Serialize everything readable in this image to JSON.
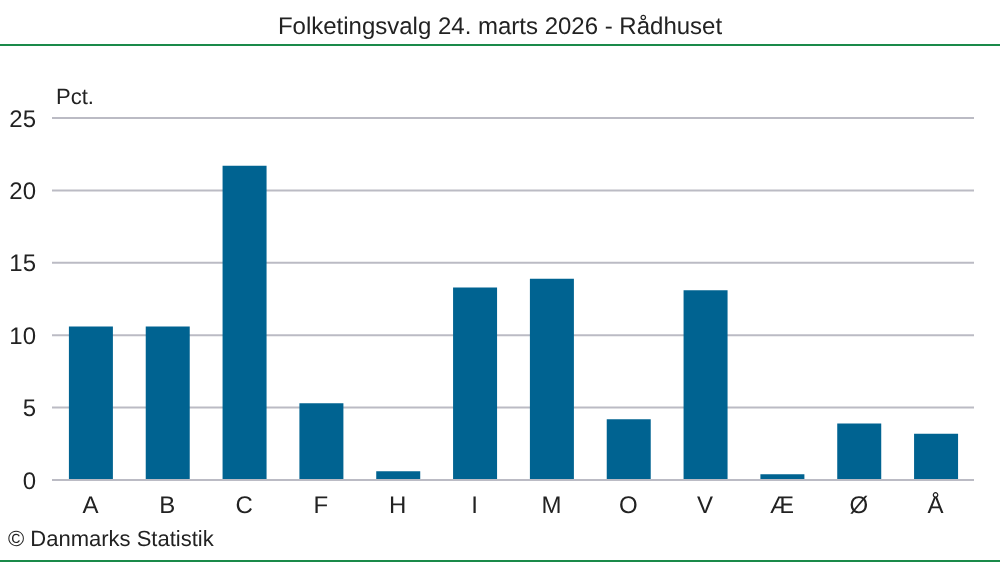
{
  "chart_data": {
    "type": "bar",
    "title": "Folketingsvalg 24. marts 2026 - Rådhuset",
    "ylabel": "Pct.",
    "categories": [
      "A",
      "B",
      "C",
      "F",
      "H",
      "I",
      "M",
      "O",
      "V",
      "Æ",
      "Ø",
      "Å"
    ],
    "values": [
      10.6,
      10.6,
      21.7,
      5.3,
      0.6,
      13.3,
      13.9,
      4.2,
      13.1,
      0.4,
      3.9,
      3.2
    ],
    "color": "#006391",
    "ylim": [
      0,
      25
    ],
    "yticks": [
      0,
      5,
      10,
      15,
      20,
      25
    ],
    "grid": "y",
    "annotations": [
      "© Danmarks Statistik"
    ]
  }
}
